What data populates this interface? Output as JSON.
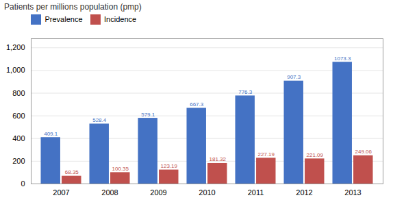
{
  "chart_data": {
    "type": "bar",
    "ylabel": "Patients per millions population (pmp)",
    "categories": [
      "2007",
      "2008",
      "2009",
      "2010",
      "2011",
      "2012",
      "2013"
    ],
    "series": [
      {
        "name": "Prevalence",
        "color": "#4472C4",
        "values": [
          409.1,
          528.4,
          579.1,
          667.3,
          776.3,
          907.3,
          1073.3
        ]
      },
      {
        "name": "Incidence",
        "color": "#C0504D",
        "values": [
          68.35,
          100.35,
          123.19,
          181.32,
          227.19,
          221.09,
          249.06
        ]
      }
    ],
    "ylim": [
      0,
      1280
    ],
    "yticks": [
      0,
      200,
      400,
      600,
      800,
      1000,
      1200
    ],
    "grid": true,
    "legend": "upper left",
    "data_labels": true
  }
}
